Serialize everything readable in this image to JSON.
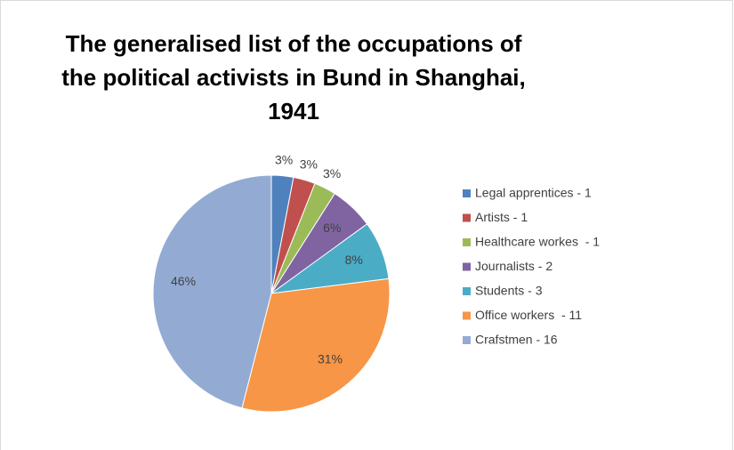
{
  "chart_data": {
    "type": "pie",
    "title": "The generalised list of the occupations of the political activists in Bund in Shanghai, 1941",
    "categories": [
      "Legal apprentices - 1",
      "Artists - 1",
      "Healthcare workes  - 1",
      "Journalists - 2",
      "Students - 3",
      "Office workers  - 11",
      "Crafstmen - 16"
    ],
    "values": [
      3,
      3,
      3,
      6,
      8,
      31,
      46
    ],
    "value_labels": [
      "3%",
      "3%",
      "3%",
      "6%",
      "8%",
      "31%",
      "46%"
    ],
    "colors": [
      "#4f81bd",
      "#c0504d",
      "#9bbb59",
      "#8064a2",
      "#4bacc6",
      "#f79646",
      "#93abd3"
    ],
    "legend": "right"
  }
}
